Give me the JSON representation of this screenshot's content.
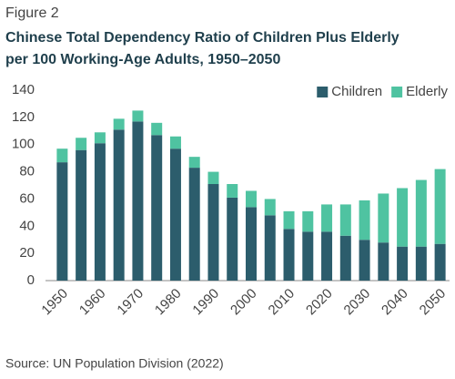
{
  "figure_label": "Figure 2",
  "source": "Source: UN Population Division (2022)",
  "chart_data": {
    "type": "stacked_bar",
    "title": [
      "Chinese Total Dependency Ratio of Children Plus Elderly",
      "per 100 Working-Age Adults, 1950–2050"
    ],
    "categories": [
      "1950",
      null,
      "1960",
      null,
      "1970",
      null,
      "1980",
      null,
      "1990",
      null,
      "2000",
      null,
      "2010",
      null,
      "2020",
      null,
      "2030",
      null,
      "2040",
      null,
      "2050"
    ],
    "series": [
      {
        "name": "Children",
        "color": "#2c5d6c",
        "values": [
          87,
          96,
          101,
          111,
          117,
          107,
          97,
          83,
          71,
          61,
          54,
          48,
          38,
          36,
          36,
          33,
          30,
          28,
          25,
          25,
          27
        ]
      },
      {
        "name": "Elderly",
        "color": "#4fc3a1",
        "values": [
          10,
          9,
          8,
          8,
          8,
          9,
          9,
          8,
          9,
          10,
          12,
          12,
          13,
          15,
          20,
          23,
          29,
          36,
          43,
          49,
          55
        ]
      }
    ],
    "ylim": [
      0,
      140
    ],
    "yticks": [
      0,
      20,
      40,
      60,
      80,
      100,
      120,
      140
    ],
    "grid": false,
    "legend": "top-right"
  }
}
